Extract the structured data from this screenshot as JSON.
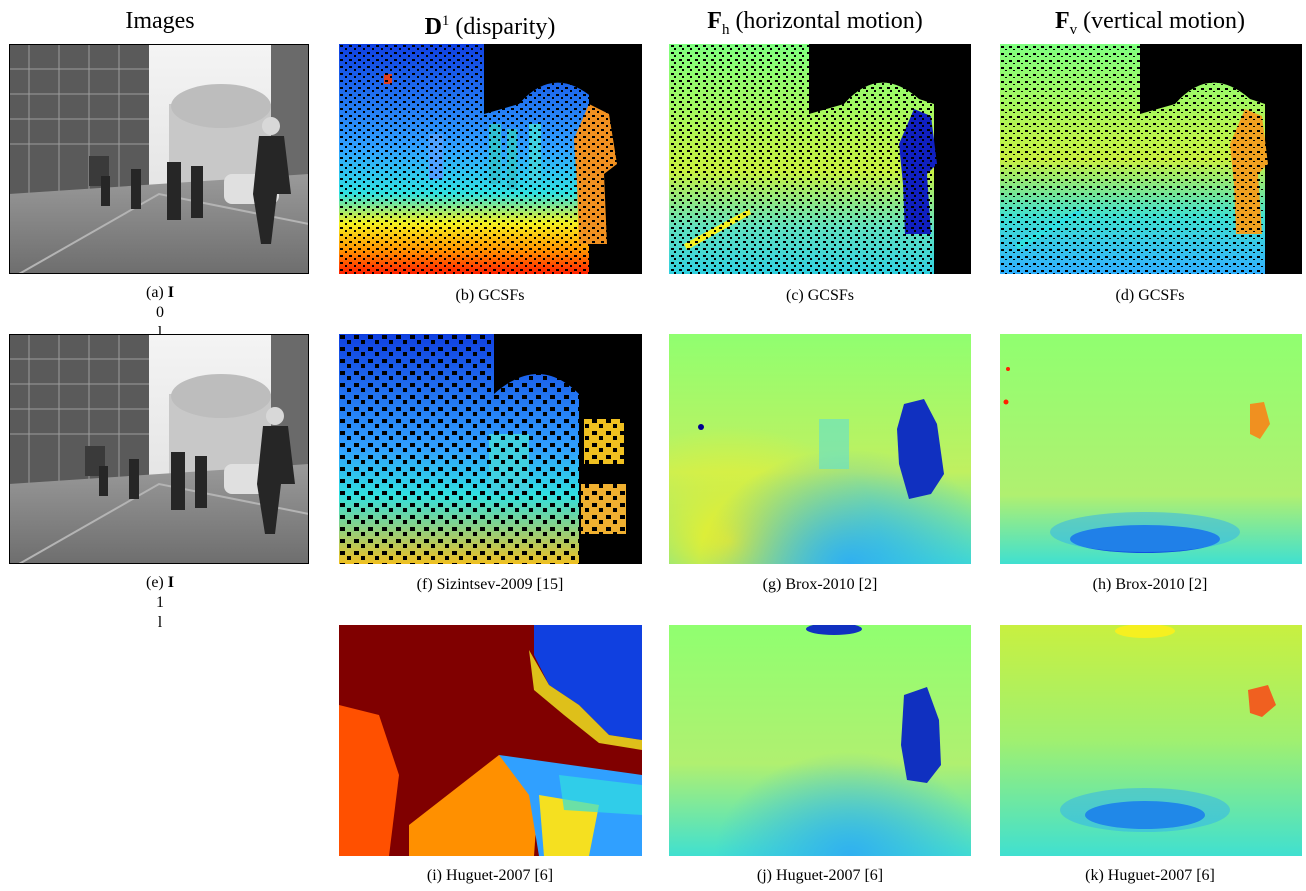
{
  "columns": [
    {
      "id": "images",
      "text": "Images"
    },
    {
      "id": "disparity",
      "symbol": "D",
      "sup": "1",
      "text": " (disparity)"
    },
    {
      "id": "horizontal",
      "symbol": "F",
      "sub": "h",
      "text": " (horizontal motion)"
    },
    {
      "id": "vertical",
      "symbol": "F",
      "sub": "v",
      "text": " (vertical motion)"
    }
  ],
  "captions": {
    "a": {
      "prefix": "(a) ",
      "symbol": "I",
      "sup": "0",
      "sub": "l"
    },
    "b": "(b) GCSFs",
    "c": "(c) GCSFs",
    "d": "(d) GCSFs",
    "e": {
      "prefix": "(e) ",
      "symbol": "I",
      "sup": "1",
      "sub": "l"
    },
    "f": "(f) Sizintsev-2009 [15]",
    "g": "(g) Brox-2010 [2]",
    "h": "(h) Brox-2010 [2]",
    "i": "(i) Huguet-2007 [6]",
    "j": "(j) Huguet-2007 [6]",
    "k": "(k) Huguet-2007 [6]"
  },
  "colors": {
    "jet_dark_red": "#800000",
    "jet_red": "#ff2000",
    "jet_orange": "#ff9000",
    "jet_yellow": "#f5f020",
    "jet_yellowgreen": "#c8f040",
    "jet_green": "#80ff80",
    "jet_cyan": "#30e0e0",
    "jet_lightblue": "#30a0ff",
    "jet_blue": "#1040e0",
    "jet_darkblue": "#000090",
    "background": "#000000"
  }
}
